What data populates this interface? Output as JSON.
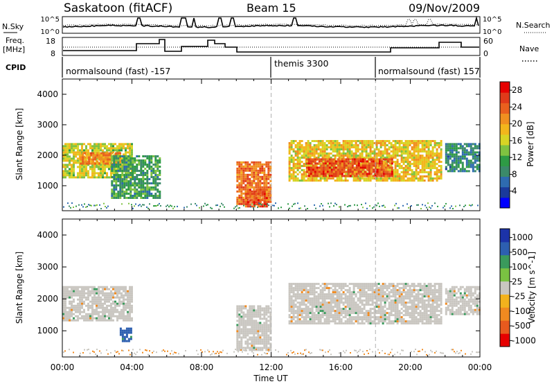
{
  "header": {
    "title": "Saskatoon (fitACF)",
    "beam": "Beam 15",
    "date": "09/Nov/2009"
  },
  "noise_panel": {
    "left_label": "N.Sky",
    "right_label": "N.Search",
    "left_ticks": [
      "10^5",
      "10^0"
    ],
    "right_ticks": [
      "10^5",
      "10^0"
    ]
  },
  "freq_panel": {
    "left_label_1": "Freq.",
    "left_label_2": "[MHz]",
    "right_label": "Nave",
    "left_ticks": [
      "18",
      "8"
    ],
    "right_ticks": [
      "60",
      "0"
    ]
  },
  "cpid_panel": {
    "label": "CPID",
    "segments": [
      {
        "text": "normalsound (fast) -157",
        "start": "00:00",
        "end": "12:00"
      },
      {
        "text": "themis 3300",
        "start": "12:00",
        "end": "18:00"
      },
      {
        "text": "normalsound (fast) 157",
        "start": "18:00",
        "end": "24:00"
      }
    ]
  },
  "chart_data": [
    {
      "type": "heatmap",
      "title": "Power [dB]",
      "ylabel": "Slant Range [km]",
      "ylim": [
        180,
        4500
      ],
      "yticks": [
        "1000",
        "2000",
        "3000",
        "4000"
      ],
      "xlim": [
        "00:00",
        "24:00"
      ],
      "colorbar": {
        "label": "Power [dB]",
        "ticks": [
          "4",
          "8",
          "12",
          "16",
          "20",
          "24",
          "28"
        ],
        "colors": [
          "#0000ff",
          "#1a3a9c",
          "#2e6bb0",
          "#3b8a6a",
          "#2e9b45",
          "#7fc241",
          "#d8d425",
          "#f2b61c",
          "#f09020",
          "#e9601e",
          "#e03a1a",
          "#e60000"
        ]
      },
      "regions": [
        {
          "t_start": 0.0,
          "t_end": 4.0,
          "range_start": 1300,
          "range_end": 2400,
          "value": 16
        },
        {
          "t_start": 1.0,
          "t_end": 3.3,
          "range_start": 1700,
          "range_end": 2100,
          "value": 22
        },
        {
          "t_start": 2.8,
          "t_end": 5.6,
          "range_start": 600,
          "range_end": 2000,
          "value": 10
        },
        {
          "t_start": 10.0,
          "t_end": 12.0,
          "range_start": 400,
          "range_end": 1800,
          "value": 24
        },
        {
          "t_start": 10.5,
          "t_end": 11.8,
          "range_start": 350,
          "range_end": 900,
          "value": 26
        },
        {
          "t_start": 13.0,
          "t_end": 21.8,
          "range_start": 1200,
          "range_end": 2500,
          "value": 18
        },
        {
          "t_start": 14.0,
          "t_end": 19.0,
          "range_start": 1300,
          "range_end": 1900,
          "value": 26
        },
        {
          "t_start": 22.0,
          "t_end": 24.0,
          "range_start": 1500,
          "range_end": 2400,
          "value": 8
        }
      ]
    },
    {
      "type": "heatmap",
      "title": "Velocity [m s^-1]",
      "ylabel": "Slant Range [km]",
      "xlabel": "Time UT",
      "ylim": [
        180,
        4500
      ],
      "yticks": [
        "1000",
        "2000",
        "3000",
        "4000"
      ],
      "xticks": [
        "00:00",
        "04:00",
        "08:00",
        "12:00",
        "16:00",
        "20:00",
        "00:00"
      ],
      "xlim": [
        "00:00",
        "24:00"
      ],
      "colorbar": {
        "label": "Velocity [m s^-1]",
        "ticks": [
          "1000",
          "500",
          "100",
          "25",
          "-25",
          "-100",
          "-500",
          "-1000"
        ],
        "colors": [
          "#1c33a8",
          "#2d5fb0",
          "#3a9a5c",
          "#7ac142",
          "#c9c6c0",
          "#f3b21d",
          "#f08a20",
          "#e85a1e",
          "#e60000"
        ]
      },
      "regions": [
        {
          "t_start": 0.0,
          "t_end": 4.0,
          "range_start": 1300,
          "range_end": 2400,
          "value": 0
        },
        {
          "t_start": 3.3,
          "t_end": 4.0,
          "range_start": 700,
          "range_end": 1100,
          "value": 500
        },
        {
          "t_start": 10.0,
          "t_end": 12.0,
          "range_start": 400,
          "range_end": 1800,
          "value": 0
        },
        {
          "t_start": 13.0,
          "t_end": 21.8,
          "range_start": 1200,
          "range_end": 2500,
          "value": 0
        },
        {
          "t_start": 22.0,
          "t_end": 24.0,
          "range_start": 1500,
          "range_end": 2400,
          "value": 0
        }
      ]
    }
  ],
  "colors": {
    "dashed_marker": "#b0b0b0",
    "velocity_gray": "#c9c6c0"
  },
  "time_markers": [
    "12:00",
    "18:00"
  ]
}
